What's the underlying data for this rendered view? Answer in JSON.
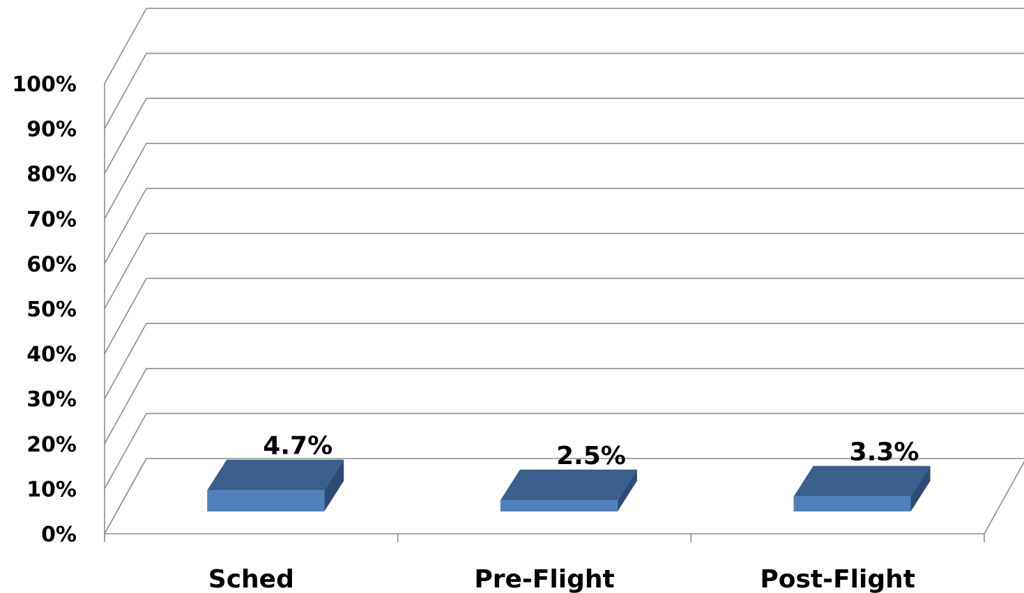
{
  "chart_data": {
    "type": "bar",
    "style": "3d-column",
    "categories": [
      "Sched",
      "Pre-Flight",
      "Post-Flight"
    ],
    "values": [
      4.7,
      2.5,
      3.3
    ],
    "data_labels": [
      "4.7%",
      "2.5%",
      "3.3%"
    ],
    "title": "",
    "xlabel": "",
    "ylabel": "",
    "ylim": [
      0,
      100
    ],
    "y_ticks": [
      "0%",
      "10%",
      "20%",
      "30%",
      "40%",
      "50%",
      "60%",
      "70%",
      "80%",
      "90%",
      "100%"
    ],
    "grid": true,
    "legend": "none",
    "colors": {
      "bar_front": "#4F81BD",
      "bar_top": "#3A5F8C",
      "bar_side": "#2E4C73",
      "grid": "#8C8C8C"
    }
  }
}
